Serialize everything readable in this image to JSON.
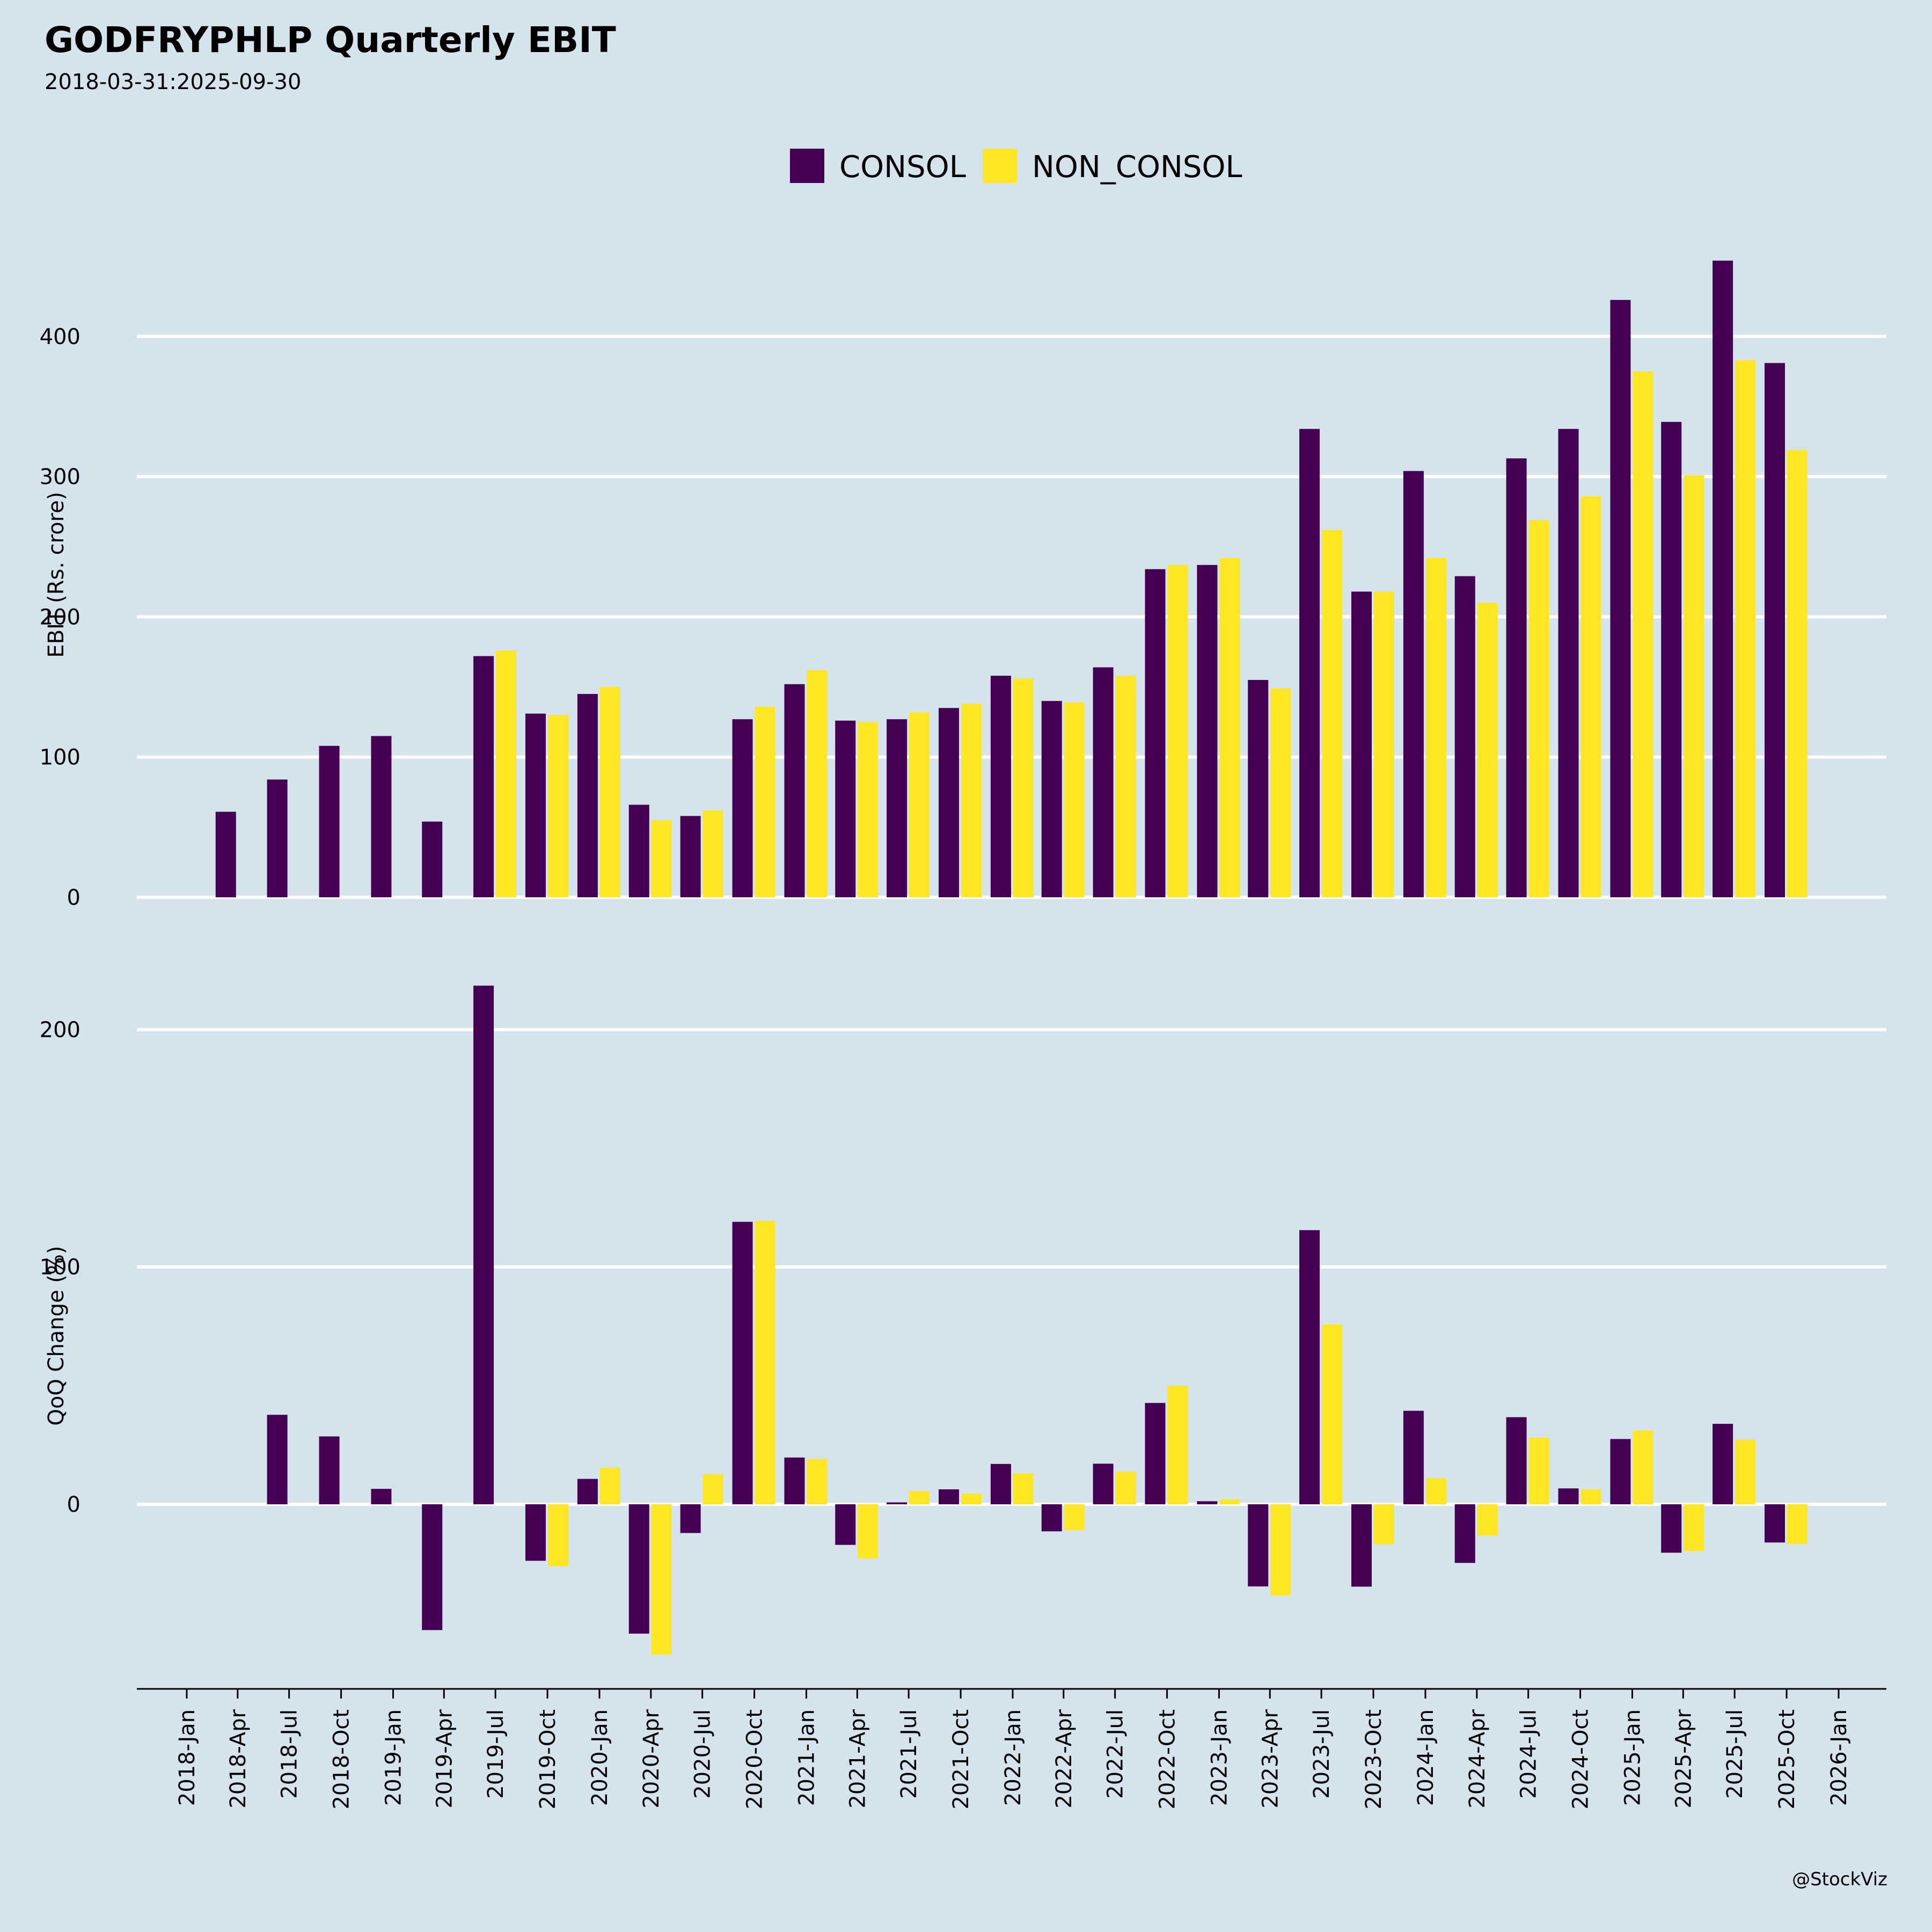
{
  "title": "GODFRYPHLP Quarterly EBIT",
  "subtitle": "2018-03-31:2025-09-30",
  "credit": "@StockViz",
  "colors": {
    "background": "#d5e4ec",
    "consol": "#440154",
    "non_consol": "#fde725",
    "grid": "#ffffff"
  },
  "chart_data": [
    {
      "type": "bar",
      "ylabel": "EBIT (Rs. crore)",
      "ylim": [
        0,
        460
      ],
      "yticks": [
        0,
        100,
        200,
        300,
        400
      ],
      "legend": {
        "placement": "top-center"
      },
      "grid": true,
      "x": [
        "2018-03-31",
        "2018-06-30",
        "2018-09-30",
        "2018-12-31",
        "2019-03-31",
        "2019-06-30",
        "2019-09-30",
        "2019-12-31",
        "2020-03-31",
        "2020-06-30",
        "2020-09-30",
        "2020-12-31",
        "2021-03-31",
        "2021-06-30",
        "2021-09-30",
        "2021-12-31",
        "2022-03-31",
        "2022-06-30",
        "2022-09-30",
        "2022-12-31",
        "2023-03-31",
        "2023-06-30",
        "2023-09-30",
        "2023-12-31",
        "2024-03-31",
        "2024-06-30",
        "2024-09-30",
        "2024-12-31",
        "2025-03-31",
        "2025-06-30",
        "2025-09-30"
      ],
      "series": [
        {
          "name": "CONSOL",
          "values": [
            61,
            84,
            108,
            115,
            54,
            172,
            131,
            145,
            66,
            58,
            127,
            152,
            126,
            127,
            135,
            158,
            140,
            164,
            234,
            237,
            155,
            334,
            218,
            304,
            229,
            313,
            334,
            426,
            339,
            454,
            381
          ]
        },
        {
          "name": "NON_CONSOL",
          "values": [
            null,
            null,
            null,
            null,
            null,
            176,
            130,
            150,
            55,
            62,
            136,
            162,
            125,
            132,
            138,
            156,
            139,
            158,
            237,
            242,
            149,
            262,
            218,
            242,
            210,
            269,
            286,
            375,
            301,
            383,
            319
          ]
        }
      ]
    },
    {
      "type": "bar",
      "ylabel": "QoQ Change (%)",
      "ylim": [
        -78,
        220
      ],
      "yticks": [
        0,
        100,
        200
      ],
      "grid": true,
      "x": [
        "2018-03-31",
        "2018-06-30",
        "2018-09-30",
        "2018-12-31",
        "2019-03-31",
        "2019-06-30",
        "2019-09-30",
        "2019-12-31",
        "2020-03-31",
        "2020-06-30",
        "2020-09-30",
        "2020-12-31",
        "2021-03-31",
        "2021-06-30",
        "2021-09-30",
        "2021-12-31",
        "2022-03-31",
        "2022-06-30",
        "2022-09-30",
        "2022-12-31",
        "2023-03-31",
        "2023-06-30",
        "2023-09-30",
        "2023-12-31",
        "2024-03-31",
        "2024-06-30",
        "2024-09-30",
        "2024-12-31",
        "2025-03-31",
        "2025-06-30",
        "2025-09-30"
      ],
      "series": [
        {
          "name": "CONSOL",
          "values": [
            null,
            37.7,
            28.6,
            6.5,
            -53.0,
            218.5,
            -23.8,
            10.7,
            -54.5,
            -12.1,
            119.0,
            19.7,
            -17.1,
            0.8,
            6.3,
            17.0,
            -11.4,
            17.1,
            42.7,
            1.3,
            -34.6,
            115.5,
            -34.7,
            39.4,
            -24.7,
            36.7,
            6.7,
            27.5,
            -20.4,
            33.9,
            -16.1
          ]
        },
        {
          "name": "NON_CONSOL",
          "values": [
            null,
            null,
            null,
            null,
            null,
            null,
            -26.1,
            15.4,
            -63.3,
            12.7,
            119.4,
            19.1,
            -22.8,
            5.6,
            4.5,
            13.0,
            -10.9,
            13.7,
            50.0,
            2.1,
            -38.4,
            75.8,
            -16.8,
            11.0,
            -13.2,
            28.1,
            6.3,
            31.1,
            -19.7,
            27.2,
            -16.7
          ]
        }
      ]
    }
  ],
  "xaxis": {
    "ticks": [
      "2018-Jan",
      "2018-Apr",
      "2018-Jul",
      "2018-Oct",
      "2019-Jan",
      "2019-Apr",
      "2019-Jul",
      "2019-Oct",
      "2020-Jan",
      "2020-Apr",
      "2020-Jul",
      "2020-Oct",
      "2021-Jan",
      "2021-Apr",
      "2021-Jul",
      "2021-Oct",
      "2022-Jan",
      "2022-Apr",
      "2022-Jul",
      "2022-Oct",
      "2023-Jan",
      "2023-Apr",
      "2023-Jul",
      "2023-Oct",
      "2024-Jan",
      "2024-Apr",
      "2024-Jul",
      "2024-Oct",
      "2025-Jan",
      "2025-Apr",
      "2025-Jul",
      "2025-Oct",
      "2026-Jan"
    ]
  }
}
